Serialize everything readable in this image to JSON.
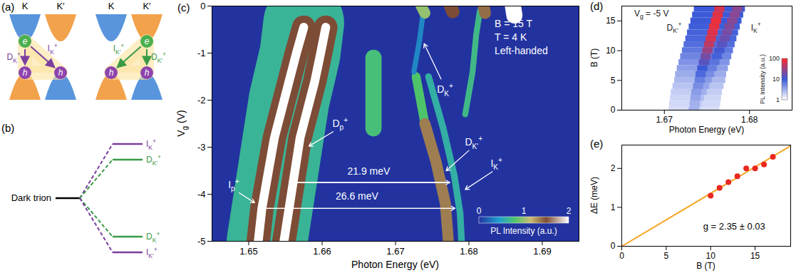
{
  "panels": {
    "a": {
      "letter": "(a)",
      "valleys": [
        "K",
        "K′"
      ],
      "conduction_colors": [
        "#3b82d6",
        "#f0922b"
      ],
      "valence_colors": [
        "#f0922b",
        "#3b82d6"
      ],
      "electron": "e",
      "hole": "h",
      "electron_color": "#4caf50",
      "hole_color": "#8e44ad",
      "region_color": "#fbe3a0",
      "subpanels": [
        {
          "electron_valley": "K",
          "color": "#7b3f9e",
          "transitions": [
            {
              "label": [
                "D",
                {
                  "sub": "K"
                },
                {
                  "sup": "+"
                }
              ],
              "to_valley": "K"
            },
            {
              "label": [
                "I",
                {
                  "sub": "K"
                },
                {
                  "sup": "+"
                }
              ],
              "to_valley": "K′"
            }
          ]
        },
        {
          "electron_valley": "K′",
          "color": "#3a9a46",
          "transitions": [
            {
              "label": [
                "I",
                {
                  "sub": "K′"
                },
                {
                  "sup": "+"
                }
              ],
              "to_valley": "K"
            },
            {
              "label": [
                "D",
                {
                  "sub": "K′"
                },
                {
                  "sup": "+"
                }
              ],
              "to_valley": "K′"
            }
          ]
        }
      ]
    },
    "b": {
      "letter": "(b)",
      "origin": "Dark trion",
      "origin_color": "#000000",
      "levels": [
        {
          "label": [
            "I",
            {
              "sub": "K"
            },
            {
              "sup": "+"
            }
          ],
          "color": "#7b3f9e"
        },
        {
          "label": [
            "D",
            {
              "sub": "K′"
            },
            {
              "sup": "+"
            }
          ],
          "color": "#3a9a46"
        },
        {
          "label": [
            "D",
            {
              "sub": "K"
            },
            {
              "sup": "+"
            }
          ],
          "color": "#3a9a46"
        },
        {
          "label": [
            "I",
            {
              "sub": "K′"
            },
            {
              "sup": "+"
            }
          ],
          "color": "#7b3f9e"
        }
      ]
    }
  },
  "chart_data": [
    {
      "type": "heatmap",
      "letter": "(c)",
      "xlabel": "Photon Energy (eV)",
      "ylabel": [
        "V",
        {
          "sub": "g"
        },
        " (V)"
      ],
      "xlim": [
        1.645,
        1.695
      ],
      "xticks": [
        1.65,
        1.66,
        1.67,
        1.68,
        1.69
      ],
      "ylim": [
        -5,
        0
      ],
      "yticks": [
        0,
        -1,
        -2,
        -3,
        -4,
        -5
      ],
      "colorbar": {
        "label": "PL Intensity (a.u.)",
        "range": [
          0,
          2
        ],
        "ticks": [
          0,
          1,
          2
        ],
        "stops": [
          0,
          0.45,
          0.8,
          1.15,
          1.5,
          2
        ],
        "colors": [
          "#2233a0",
          "#1f9fd0",
          "#4ec46a",
          "#c9be72",
          "#7d4c36",
          "#ffffff"
        ]
      },
      "features": [
        {
          "intensity": 0.65,
          "width": 0.011,
          "points": [
            [
              1.6525,
              -5
            ],
            [
              1.6535,
              -4
            ],
            [
              1.6545,
              -3
            ],
            [
              1.6555,
              -2
            ],
            [
              1.657,
              -1
            ],
            [
              1.6575,
              -0.35
            ]
          ]
        },
        {
          "intensity": 1.5,
          "width": 0.0032,
          "points": [
            [
              1.6513,
              -5
            ],
            [
              1.6518,
              -4.3
            ],
            [
              1.6527,
              -3.5
            ],
            [
              1.6535,
              -2.8
            ],
            [
              1.6545,
              -2.2
            ],
            [
              1.6555,
              -1.6
            ],
            [
              1.6565,
              -1.0
            ],
            [
              1.6575,
              -0.45
            ]
          ]
        },
        {
          "intensity": 1.5,
          "width": 0.0032,
          "points": [
            [
              1.6548,
              -5
            ],
            [
              1.6555,
              -4.3
            ],
            [
              1.6563,
              -3.5
            ],
            [
              1.657,
              -2.8
            ],
            [
              1.658,
              -2.2
            ],
            [
              1.659,
              -1.6
            ],
            [
              1.6598,
              -1.0
            ],
            [
              1.6605,
              -0.45
            ]
          ]
        },
        {
          "intensity": 2,
          "width": 0.0012,
          "points": [
            [
              1.6513,
              -5
            ],
            [
              1.6518,
              -4.3
            ],
            [
              1.6527,
              -3.5
            ],
            [
              1.6535,
              -2.8
            ],
            [
              1.6545,
              -2.2
            ],
            [
              1.6555,
              -1.6
            ],
            [
              1.6565,
              -1.0
            ],
            [
              1.6575,
              -0.45
            ]
          ]
        },
        {
          "intensity": 2,
          "width": 0.0012,
          "points": [
            [
              1.6548,
              -5
            ],
            [
              1.6555,
              -4.3
            ],
            [
              1.6563,
              -3.5
            ],
            [
              1.657,
              -2.8
            ],
            [
              1.658,
              -2.2
            ],
            [
              1.659,
              -1.6
            ],
            [
              1.6598,
              -1.0
            ],
            [
              1.6605,
              -0.45
            ]
          ]
        },
        {
          "intensity": 0.75,
          "width": 0.0022,
          "points": [
            [
              1.667,
              -2.6
            ],
            [
              1.667,
              -1.1
            ]
          ]
        },
        {
          "intensity": 0.8,
          "width": 0.0012,
          "points": [
            [
              1.6728,
              -1.5
            ],
            [
              1.674,
              -2.5
            ]
          ]
        },
        {
          "intensity": 1.35,
          "width": 0.0015,
          "points": [
            [
              1.674,
              -2.5
            ],
            [
              1.6755,
              -3.3
            ],
            [
              1.6768,
              -4.2
            ],
            [
              1.6772,
              -5
            ]
          ]
        },
        {
          "intensity": 0.6,
          "width": 0.0009,
          "points": [
            [
              1.6745,
              -1.5
            ],
            [
              1.6765,
              -2.6
            ],
            [
              1.678,
              -3.6
            ],
            [
              1.6788,
              -4.4
            ],
            [
              1.679,
              -5
            ]
          ]
        },
        {
          "intensity": 0.35,
          "width": 0.0007,
          "points": [
            [
              1.6725,
              -1.4
            ],
            [
              1.6733,
              -0.7
            ],
            [
              1.6738,
              -0.1
            ]
          ]
        },
        {
          "intensity": 0.7,
          "width": 0.0008,
          "points": [
            [
              1.6795,
              -2.3
            ],
            [
              1.6805,
              -1.4
            ],
            [
              1.681,
              -0.6
            ],
            [
              1.6815,
              -0.1
            ]
          ]
        },
        {
          "intensity": 2,
          "width": 0.0022,
          "points": [
            [
              1.686,
              0
            ],
            [
              1.6862,
              -0.2
            ]
          ]
        },
        {
          "intensity": 1.5,
          "width": 0.0018,
          "points": [
            [
              1.6775,
              0
            ],
            [
              1.6778,
              -0.12
            ]
          ]
        },
        {
          "intensity": 1.4,
          "width": 0.0016,
          "points": [
            [
              1.682,
              0
            ],
            [
              1.6822,
              -0.15
            ]
          ]
        },
        {
          "intensity": 1.0,
          "width": 0.0015,
          "points": [
            [
              1.6735,
              0
            ],
            [
              1.674,
              -0.15
            ]
          ]
        }
      ],
      "annotations": [
        {
          "text": [
            "D",
            {
              "sub": "K"
            },
            {
              "sup": "+"
            }
          ],
          "x": 1.6768,
          "y": -1.78,
          "arrow": [
            1.6762,
            -1.55,
            1.6739,
            -0.8
          ]
        },
        {
          "text": [
            "D",
            {
              "sub": "p"
            },
            {
              "sup": "+"
            }
          ],
          "x": 1.6625,
          "y": -2.5,
          "arrow": [
            1.6615,
            -2.67,
            1.6582,
            -2.98
          ]
        },
        {
          "text": [
            "D",
            {
              "sub": "K′"
            },
            {
              "sup": "+"
            }
          ],
          "x": 1.6807,
          "y": -2.9,
          "arrow": [
            1.68,
            -3.07,
            1.6769,
            -3.5
          ]
        },
        {
          "text": [
            "I",
            {
              "sub": "K"
            },
            {
              "sup": "+"
            }
          ],
          "x": 1.6838,
          "y": -3.35,
          "arrow": [
            1.6832,
            -3.52,
            1.6795,
            -3.9
          ]
        },
        {
          "text": [
            "I",
            {
              "sub": "p"
            },
            {
              "sup": "+"
            }
          ],
          "x": 1.648,
          "y": -3.8,
          "arrow": [
            1.6487,
            -3.97,
            1.6508,
            -4.18
          ]
        }
      ],
      "double_arrows": [
        {
          "text": "21.9 meV",
          "x": 1.6664,
          "y": -3.52,
          "from": [
            1.6555,
            -3.75
          ],
          "to": [
            1.6774,
            -3.75
          ]
        },
        {
          "text": "26.6 meV",
          "x": 1.6648,
          "y": -4.05,
          "from": [
            1.6515,
            -4.3
          ],
          "to": [
            1.6781,
            -4.3
          ]
        }
      ],
      "notes": [
        "B = 15 T",
        "T = 4 K",
        "Left-handed"
      ]
    },
    {
      "type": "heatmap",
      "letter": "(d)",
      "xlabel": "Photon Energy (eV)",
      "ylabel": "B (T)",
      "xlim": [
        1.665,
        1.685
      ],
      "xticks": [
        1.67,
        1.68
      ],
      "ylim": [
        0,
        17.5
      ],
      "yticks": [
        0,
        5,
        10,
        15
      ],
      "annotation": [
        "V",
        {
          "sub": "g"
        },
        " = -5 V"
      ],
      "annotation_at": [
        1.6665,
        16.2
      ],
      "B": [
        0,
        1,
        2,
        3,
        4,
        5,
        6,
        7,
        8,
        9,
        10,
        11,
        12,
        13,
        14,
        15,
        16,
        17
      ],
      "peaks": [
        {
          "label": [
            "D",
            {
              "sub": "K′"
            },
            {
              "sup": "+"
            }
          ],
          "label_at": [
            1.6712,
            13.8
          ],
          "width": 0.0012,
          "energy": [
            1.6735,
            1.6736,
            1.6737,
            1.6738,
            1.674,
            1.6742,
            1.6743,
            1.6745,
            1.6747,
            1.6749,
            1.6751,
            1.6753,
            1.6755,
            1.6757,
            1.6759,
            1.6761,
            1.6763,
            1.6765
          ],
          "intensity": [
            3,
            3,
            3.5,
            4,
            5,
            6,
            8,
            10,
            14,
            20,
            30,
            45,
            60,
            70,
            75,
            80,
            70,
            60
          ]
        },
        {
          "label": [
            "I",
            {
              "sub": "K"
            },
            {
              "sup": "+"
            }
          ],
          "label_at": [
            1.6808,
            13.8
          ],
          "width": 0.0012,
          "energy": [
            1.6737,
            1.6739,
            1.6741,
            1.6744,
            1.6747,
            1.675,
            1.6753,
            1.6756,
            1.6759,
            1.6762,
            1.6765,
            1.6768,
            1.6771,
            1.6774,
            1.6777,
            1.678,
            1.6783,
            1.6786
          ],
          "intensity": [
            2,
            2,
            2.5,
            3,
            3.5,
            4,
            5,
            6,
            7,
            9,
            11,
            14,
            17,
            20,
            22,
            24,
            25,
            25
          ]
        }
      ],
      "halo": {
        "width": 0.006,
        "intensity": [
          1.6,
          1.7,
          1.8,
          2,
          2.3,
          2.7,
          3.2,
          3.8,
          4.5,
          5.5,
          6.5,
          7.5,
          8.5,
          9,
          9.5,
          10,
          10,
          10
        ]
      },
      "colorbar": {
        "label": "PL Intensity (a.u.)",
        "range": [
          1,
          100
        ],
        "ticks": [
          1,
          10,
          100
        ],
        "log": true,
        "stops": [
          1,
          10,
          100
        ],
        "colors": [
          "#ffffff",
          "#3c5ad8",
          "#ff2a2a"
        ]
      }
    },
    {
      "type": "scatter",
      "letter": "(e)",
      "xlabel": "B (T)",
      "ylabel": "ΔE (meV)",
      "xlim": [
        0,
        19
      ],
      "xticks": [
        0,
        5,
        10,
        15
      ],
      "ylim": [
        0,
        2.6
      ],
      "yticks": [
        0,
        1,
        2
      ],
      "x": [
        10,
        11,
        12,
        13,
        14,
        15,
        16,
        17
      ],
      "values": [
        1.3,
        1.5,
        1.65,
        1.8,
        2.0,
        2.0,
        2.1,
        2.3
      ],
      "color": "#e8271f",
      "marker": "circle",
      "fit": {
        "type": "line",
        "x": [
          0,
          19
        ],
        "values": [
          0,
          2.58
        ],
        "color": "#f5a623",
        "label": "g = 2.35 ± 0.03",
        "label_at": [
          9.2,
          0.5
        ]
      }
    }
  ]
}
